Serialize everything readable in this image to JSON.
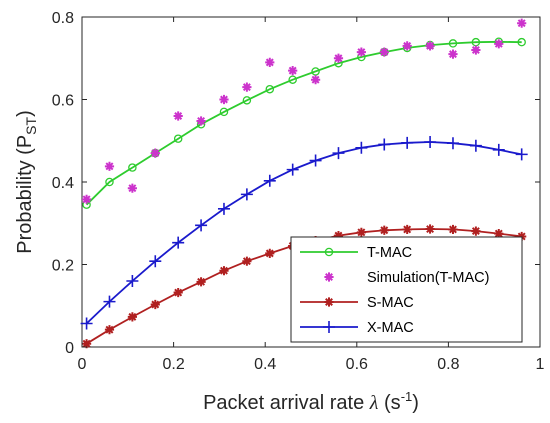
{
  "chart_data": {
    "type": "line",
    "xlabel": {
      "main": "Packet arrival rate ",
      "symbol": "λ",
      "unit_open": " (s",
      "unit_sup": "-1",
      "unit_close": ")"
    },
    "ylabel": {
      "main": "Probability (P",
      "sub": "ST",
      "close": ")"
    },
    "xlim": [
      0,
      1
    ],
    "ylim": [
      0,
      0.8
    ],
    "xticks": [
      "0",
      "0.2",
      "0.4",
      "0.6",
      "0.8",
      "1"
    ],
    "yticks": [
      "0",
      "0.2",
      "0.4",
      "0.6",
      "0.8"
    ],
    "grid": false,
    "legend_position": "bottom-right",
    "series": [
      {
        "name": "T-MAC",
        "color": "#2ecc2e",
        "marker": "circle",
        "x": [
          0.01,
          0.06,
          0.11,
          0.16,
          0.21,
          0.26,
          0.31,
          0.36,
          0.41,
          0.46,
          0.51,
          0.56,
          0.61,
          0.66,
          0.71,
          0.76,
          0.81,
          0.86,
          0.91,
          0.96
        ],
        "y": [
          0.345,
          0.4,
          0.435,
          0.47,
          0.505,
          0.54,
          0.57,
          0.598,
          0.625,
          0.648,
          0.668,
          0.688,
          0.703,
          0.715,
          0.725,
          0.732,
          0.736,
          0.739,
          0.74,
          0.739
        ]
      },
      {
        "name": "Simulation(T-MAC)",
        "color": "#cc33cc",
        "marker": "asterisk",
        "x": [
          0.01,
          0.06,
          0.11,
          0.16,
          0.21,
          0.26,
          0.31,
          0.36,
          0.41,
          0.46,
          0.51,
          0.56,
          0.61,
          0.66,
          0.71,
          0.76,
          0.81,
          0.86,
          0.91,
          0.96
        ],
        "y": [
          0.358,
          0.438,
          0.385,
          0.47,
          0.56,
          0.548,
          0.6,
          0.63,
          0.69,
          0.67,
          0.648,
          0.7,
          0.715,
          0.715,
          0.73,
          0.73,
          0.71,
          0.72,
          0.735,
          0.785
        ]
      },
      {
        "name": "S-MAC",
        "color": "#b02020",
        "marker": "asterisk",
        "x": [
          0.01,
          0.06,
          0.11,
          0.16,
          0.21,
          0.26,
          0.31,
          0.36,
          0.41,
          0.46,
          0.51,
          0.56,
          0.61,
          0.66,
          0.71,
          0.76,
          0.81,
          0.86,
          0.91,
          0.96
        ],
        "y": [
          0.008,
          0.042,
          0.073,
          0.103,
          0.132,
          0.158,
          0.185,
          0.208,
          0.227,
          0.245,
          0.258,
          0.27,
          0.278,
          0.283,
          0.285,
          0.286,
          0.285,
          0.281,
          0.275,
          0.268
        ]
      },
      {
        "name": "X-MAC",
        "color": "#1a1acc",
        "marker": "plus",
        "x": [
          0.01,
          0.06,
          0.11,
          0.16,
          0.21,
          0.26,
          0.31,
          0.36,
          0.41,
          0.46,
          0.51,
          0.56,
          0.61,
          0.66,
          0.71,
          0.76,
          0.81,
          0.86,
          0.91,
          0.96
        ],
        "y": [
          0.057,
          0.11,
          0.16,
          0.208,
          0.253,
          0.295,
          0.335,
          0.37,
          0.403,
          0.43,
          0.452,
          0.47,
          0.483,
          0.491,
          0.495,
          0.497,
          0.494,
          0.488,
          0.478,
          0.467
        ]
      }
    ]
  }
}
